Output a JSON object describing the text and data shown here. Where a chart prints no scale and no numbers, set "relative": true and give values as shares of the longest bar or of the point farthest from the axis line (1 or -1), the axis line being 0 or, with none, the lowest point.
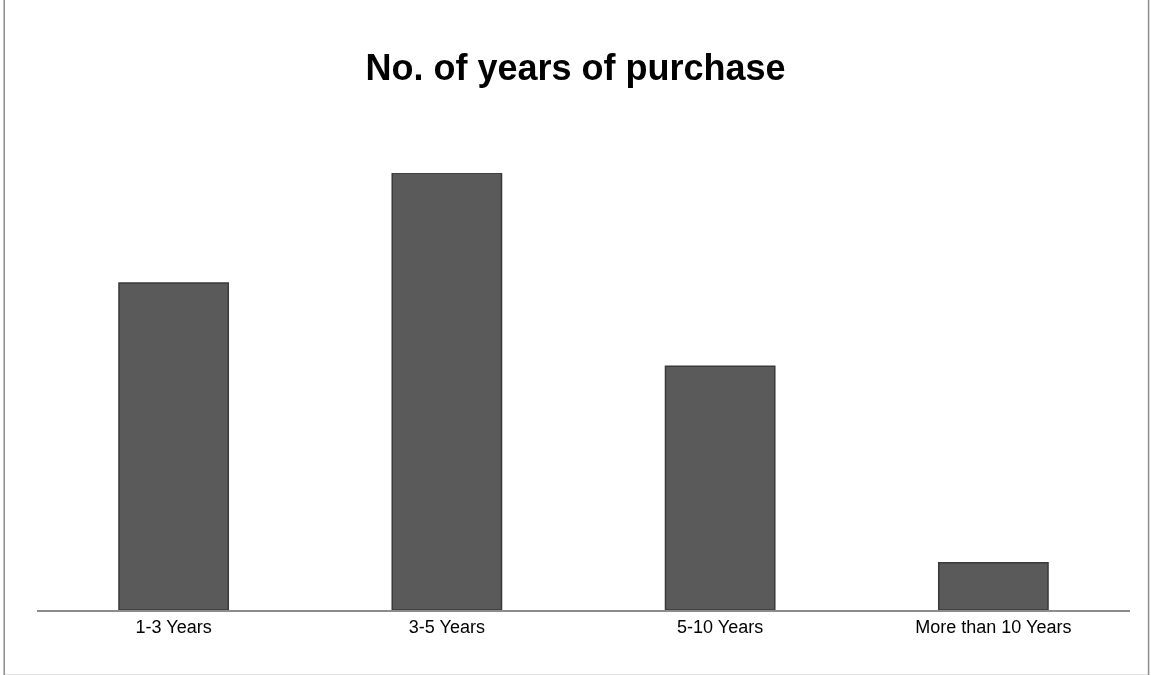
{
  "chart_data": {
    "type": "bar",
    "title": "No. of years of purchase",
    "relative": true,
    "categories": [
      "1-3 Years",
      "3-5 Years",
      "5-10 Years",
      "More than 10 Years"
    ],
    "values": [
      0.748,
      1,
      0.558,
      0.108
    ],
    "color": "#5a5a5a"
  }
}
